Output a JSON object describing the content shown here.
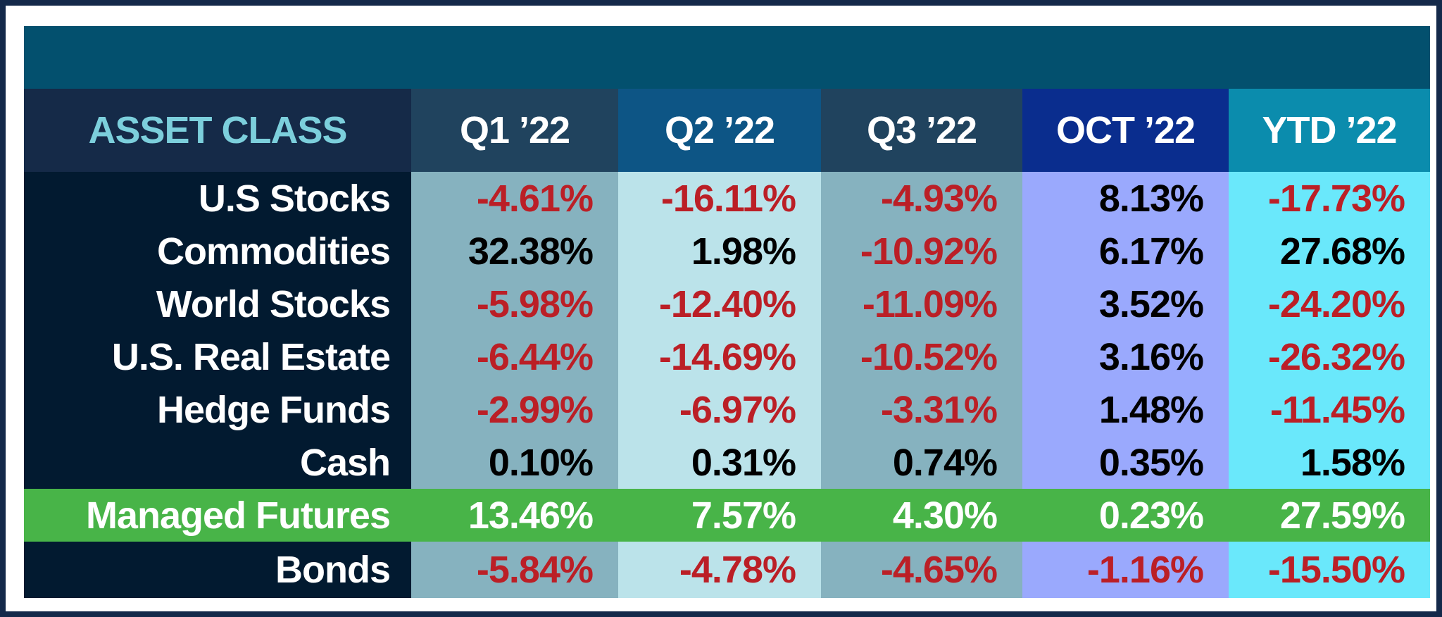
{
  "header": {
    "columns": [
      "ASSET CLASS",
      "Q1 ’22",
      "Q2 ’22",
      "Q3 ’22",
      "OCT ’22",
      "YTD ’22"
    ]
  },
  "colors": {
    "title_band": "#03506e",
    "header_bg": [
      "#152a48",
      "#20435e",
      "#0d5585",
      "#20435e",
      "#0a2d8e",
      "#0b8cad"
    ],
    "column_bg": [
      "#021a30",
      "#86b2bf",
      "#bbe3ea",
      "#86b2bf",
      "#9aa9fd",
      "#6ae8fb"
    ],
    "asset_class_text": "#7ccfdc",
    "negative": "#bb1f26",
    "highlight_row": "#48b448"
  },
  "rows": [
    {
      "label": "U.S Stocks",
      "values": [
        "-4.61%",
        "-16.11%",
        "-4.93%",
        "8.13%",
        "-17.73%"
      ]
    },
    {
      "label": "Commodities",
      "values": [
        "32.38%",
        "1.98%",
        "-10.92%",
        "6.17%",
        "27.68%"
      ]
    },
    {
      "label": "World Stocks",
      "values": [
        "-5.98%",
        "-12.40%",
        "-11.09%",
        "3.52%",
        "-24.20%"
      ]
    },
    {
      "label": "U.S. Real Estate",
      "values": [
        "-6.44%",
        "-14.69%",
        "-10.52%",
        "3.16%",
        "-26.32%"
      ]
    },
    {
      "label": "Hedge Funds",
      "values": [
        "-2.99%",
        "-6.97%",
        "-3.31%",
        "1.48%",
        "-11.45%"
      ]
    },
    {
      "label": "Cash",
      "values": [
        "0.10%",
        "0.31%",
        "0.74%",
        "0.35%",
        "1.58%"
      ]
    },
    {
      "label": "Managed Futures",
      "values": [
        "13.46%",
        "7.57%",
        "4.30%",
        "0.23%",
        "27.59%"
      ],
      "highlight": true
    },
    {
      "label": "Bonds",
      "values": [
        "-5.84%",
        "-4.78%",
        "-4.65%",
        "-1.16%",
        "-15.50%"
      ]
    }
  ]
}
